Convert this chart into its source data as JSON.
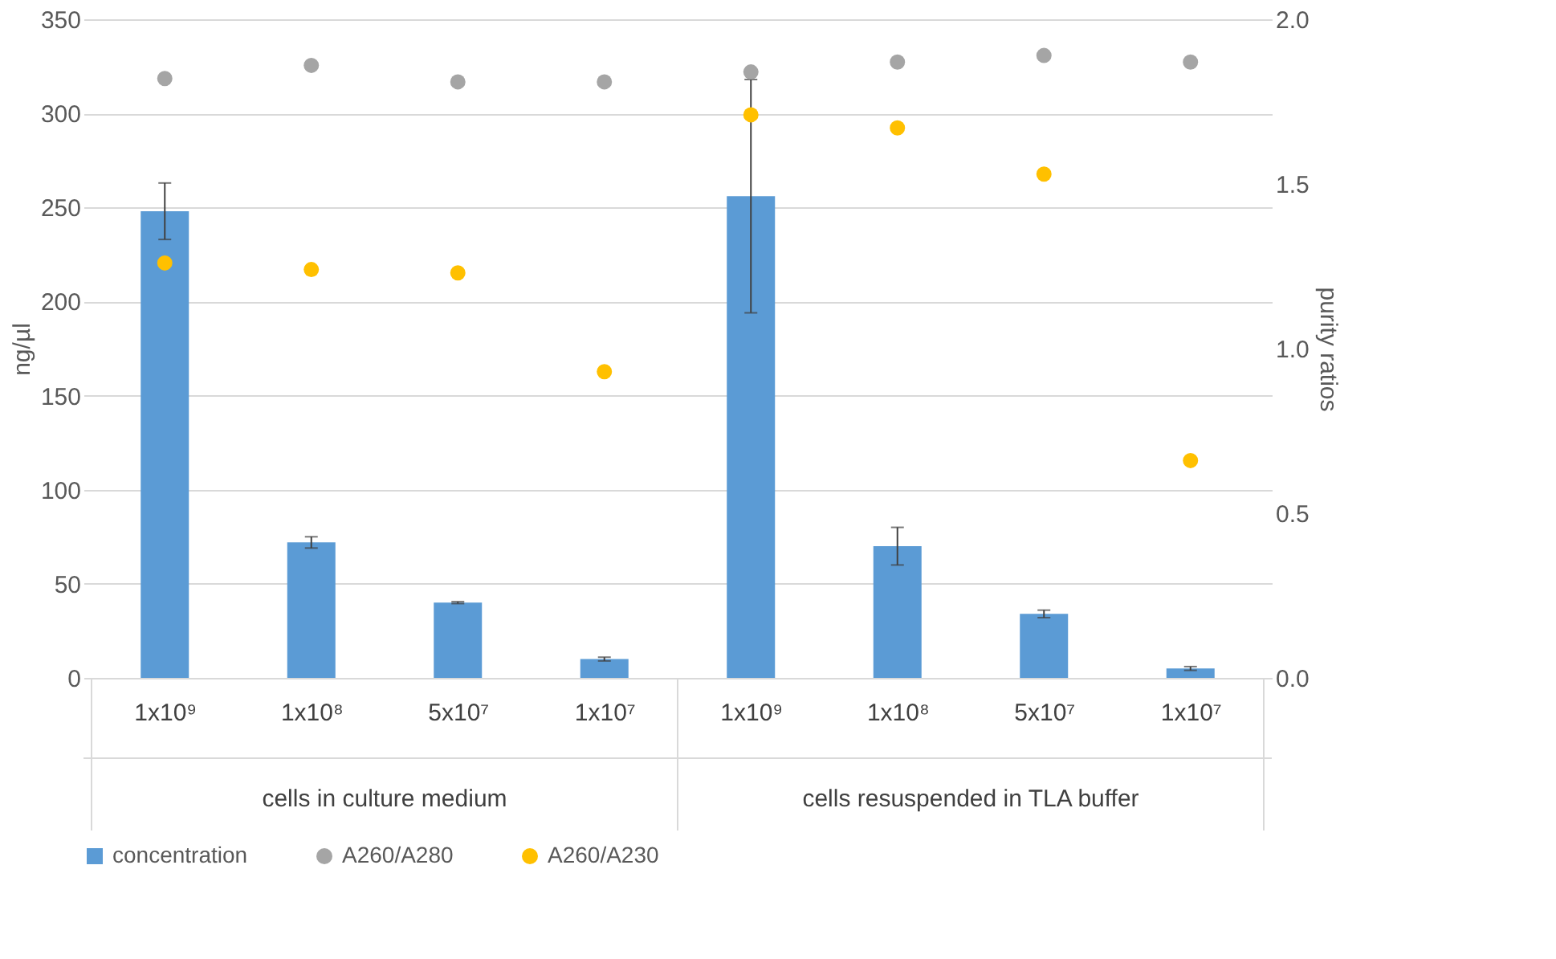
{
  "chart_data": {
    "type": "bar",
    "categories": [
      "1x10⁹",
      "1x10⁸",
      "5x10⁷",
      "1x10⁷",
      "1x10⁹",
      "1x10⁸",
      "5x10⁷",
      "1x10⁷"
    ],
    "ylabel": "ng/µl",
    "y2label": "purity ratios",
    "ylim": [
      0,
      350
    ],
    "yticks": [
      0,
      50,
      100,
      150,
      200,
      250,
      300,
      350
    ],
    "y2lim": [
      0,
      2.0
    ],
    "y2ticks": [
      {
        "value": 0,
        "label": "0.0"
      },
      {
        "value": 0.5,
        "label": "0.5"
      },
      {
        "value": 1.0,
        "label": "1.0"
      },
      {
        "value": 1.5,
        "label": "1.5"
      },
      {
        "value": 2.0,
        "label": "2.0"
      }
    ],
    "grid": "y",
    "legend": "bottom",
    "annotations": [
      "cells in culture medium",
      "cells resuspended in TLA buffer"
    ],
    "series": [
      {
        "name": "concentration",
        "color": "#5b9bd5",
        "values": [
          248,
          72,
          40,
          10,
          256,
          70,
          34,
          5
        ],
        "errors": [
          15,
          3,
          0.5,
          1,
          62,
          10,
          2,
          1
        ]
      },
      {
        "name": "A260/A280",
        "type": "scatter",
        "axis": "y2",
        "marker": "circle",
        "color": "#a5a5a5",
        "values": [
          1.82,
          1.86,
          1.81,
          1.81,
          1.84,
          1.87,
          1.89,
          1.87
        ]
      },
      {
        "name": "A260/A230",
        "type": "scatter",
        "axis": "y2",
        "marker": "circle",
        "color": "#ffc000",
        "values": [
          1.26,
          1.24,
          1.23,
          0.93,
          1.71,
          1.67,
          1.53,
          0.66
        ]
      }
    ]
  }
}
